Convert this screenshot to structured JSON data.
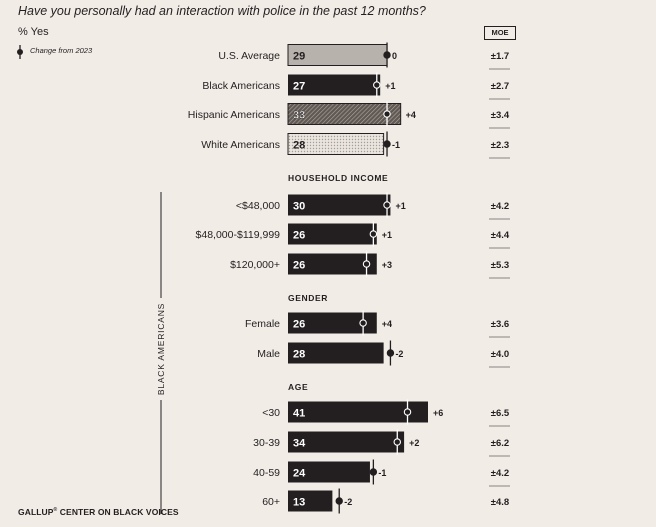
{
  "title": "Have you personally had an interaction with police in the past 12 months?",
  "subtitle": "% Yes",
  "legend": {
    "change_label": "Change from 2023"
  },
  "moe_header": "MOE",
  "group_label": "BLACK AMERICANS",
  "footer": {
    "source_main": "GALLUP",
    "source_mark": "®",
    "source_rest": " CENTER ON BLACK VOICES"
  },
  "colors": {
    "dark_bar": "#231f20",
    "us_average_bar": "#b8b2ad",
    "hispanic_bar": "#8e8782",
    "white_bar": "#e2dcd6",
    "background": "#f1ece6"
  },
  "chart_data": {
    "type": "bar",
    "title": "Have you personally had an interaction with police in the past 12 months?",
    "ylabel": "% Yes",
    "xlim": [
      0,
      45
    ],
    "legend": "Change from 2023",
    "sections": [
      "",
      "HOUSEHOLD INCOME",
      "GENDER",
      "AGE"
    ],
    "rows": [
      {
        "label": "U.S. Average",
        "section": "",
        "value": 29,
        "change": "0",
        "moe": "±1.7",
        "style": "us_average"
      },
      {
        "label": "Black Americans",
        "section": "",
        "value": 27,
        "change": "+1",
        "moe": "±2.7",
        "style": "dark"
      },
      {
        "label": "Hispanic Americans",
        "section": "",
        "value": 33,
        "change": "+4",
        "moe": "±3.4",
        "style": "hispanic"
      },
      {
        "label": "White Americans",
        "section": "",
        "value": 28,
        "change": "-1",
        "moe": "±2.3",
        "style": "white"
      },
      {
        "label": "<$48,000",
        "section": "HOUSEHOLD INCOME",
        "value": 30,
        "change": "+1",
        "moe": "±4.2",
        "style": "dark"
      },
      {
        "label": "$48,000-$119,999",
        "section": "HOUSEHOLD INCOME",
        "value": 26,
        "change": "+1",
        "moe": "±4.4",
        "style": "dark"
      },
      {
        "label": "$120,000+",
        "section": "HOUSEHOLD INCOME",
        "value": 26,
        "change": "+3",
        "moe": "±5.3",
        "style": "dark"
      },
      {
        "label": "Female",
        "section": "GENDER",
        "value": 26,
        "change": "+4",
        "moe": "±3.6",
        "style": "dark"
      },
      {
        "label": "Male",
        "section": "GENDER",
        "value": 28,
        "change": "-2",
        "moe": "±4.0",
        "style": "dark"
      },
      {
        "label": "<30",
        "section": "AGE",
        "value": 41,
        "change": "+6",
        "moe": "±6.5",
        "style": "dark"
      },
      {
        "label": "30-39",
        "section": "AGE",
        "value": 34,
        "change": "+2",
        "moe": "±6.2",
        "style": "dark"
      },
      {
        "label": "40-59",
        "section": "AGE",
        "value": 24,
        "change": "-1",
        "moe": "±4.2",
        "style": "dark"
      },
      {
        "label": "60+",
        "section": "AGE",
        "value": 13,
        "change": "-2",
        "moe": "±4.8",
        "style": "dark"
      }
    ]
  }
}
